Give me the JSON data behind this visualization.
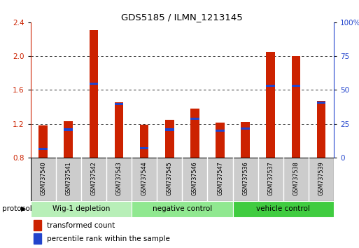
{
  "title": "GDS5185 / ILMN_1213145",
  "samples": [
    "GSM737540",
    "GSM737541",
    "GSM737542",
    "GSM737543",
    "GSM737544",
    "GSM737545",
    "GSM737546",
    "GSM737547",
    "GSM737536",
    "GSM737537",
    "GSM737538",
    "GSM737539"
  ],
  "red_values": [
    1.18,
    1.23,
    2.31,
    1.45,
    1.19,
    1.25,
    1.38,
    1.21,
    1.22,
    2.05,
    2.0,
    1.47
  ],
  "blue_values": [
    0.9,
    1.13,
    1.67,
    1.43,
    0.91,
    1.13,
    1.26,
    1.12,
    1.14,
    1.65,
    1.65,
    1.45
  ],
  "ylim_left": [
    0.8,
    2.4
  ],
  "ylim_right": [
    0,
    100
  ],
  "yticks_left": [
    0.8,
    1.2,
    1.6,
    2.0,
    2.4
  ],
  "yticks_right": [
    0,
    25,
    50,
    75,
    100
  ],
  "ytick_labels_right": [
    "0",
    "25",
    "50",
    "75",
    "100%"
  ],
  "groups": [
    {
      "label": "Wig-1 depletion",
      "indices": [
        0,
        1,
        2,
        3
      ],
      "color": "#b8efb8"
    },
    {
      "label": "negative control",
      "indices": [
        4,
        5,
        6,
        7
      ],
      "color": "#90e890"
    },
    {
      "label": "vehicle control",
      "indices": [
        8,
        9,
        10,
        11
      ],
      "color": "#40cc40"
    }
  ],
  "protocol_label": "protocol",
  "bar_width": 0.35,
  "blue_bar_height": 0.025,
  "red_color": "#cc2200",
  "blue_color": "#2244cc",
  "background_color": "#ffffff",
  "plot_bg_color": "#ffffff",
  "tick_color_left": "#cc2200",
  "tick_color_right": "#2244cc",
  "legend_red": "transformed count",
  "legend_blue": "percentile rank within the sample",
  "sample_box_color": "#cccccc",
  "bar_bottom": 0.8,
  "main_axes": [
    0.085,
    0.365,
    0.845,
    0.545
  ],
  "samples_axes": [
    0.085,
    0.19,
    0.845,
    0.175
  ],
  "groups_axes": [
    0.085,
    0.125,
    0.845,
    0.065
  ],
  "legend_axes": [
    0.085,
    0.005,
    0.845,
    0.12
  ]
}
